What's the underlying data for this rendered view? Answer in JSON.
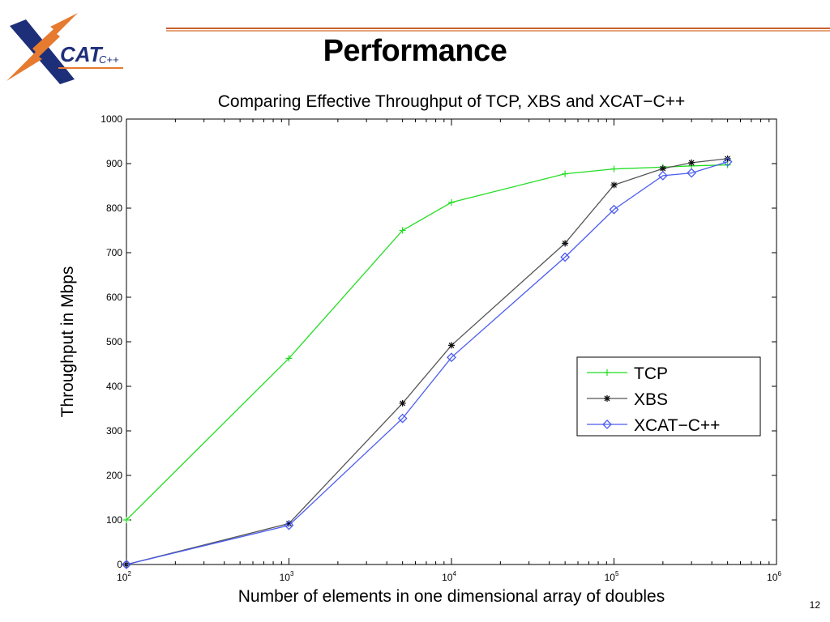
{
  "slide": {
    "title": "Performance",
    "page_number": "12",
    "logo_text": "CAT",
    "logo_suffix": "C++"
  },
  "colors": {
    "rule": "#c8602a",
    "tcp": "#22dd22",
    "xbs": "#555555",
    "xcat": "#4b5cf0",
    "logo_blue": "#1e2f7a",
    "logo_orange": "#e67a2e"
  },
  "chart_data": {
    "type": "line",
    "title": "Comparing Effective Throughput of TCP, XBS and XCAT−C++",
    "xlabel": "Number of elements in one dimensional array of doubles",
    "ylabel": "Throughput in Mbps",
    "x_scale": "log",
    "xlim": [
      100,
      1000000
    ],
    "ylim": [
      0,
      1000
    ],
    "x_ticks": [
      {
        "value": 100,
        "base": "10",
        "exp": "2"
      },
      {
        "value": 1000,
        "base": "10",
        "exp": "3"
      },
      {
        "value": 10000,
        "base": "10",
        "exp": "4"
      },
      {
        "value": 100000,
        "base": "10",
        "exp": "5"
      },
      {
        "value": 1000000,
        "base": "10",
        "exp": "6"
      }
    ],
    "y_ticks": [
      "0",
      "100",
      "200",
      "300",
      "400",
      "500",
      "600",
      "700",
      "800",
      "900",
      "1000"
    ],
    "grid": false,
    "legend_position": "lower-right",
    "series": [
      {
        "name": "TCP",
        "marker": "plus",
        "color": "#22dd22",
        "x": [
          100,
          1000,
          5000,
          10000,
          50000,
          100000,
          200000,
          300000,
          500000
        ],
        "y": [
          100,
          463,
          750,
          813,
          877,
          888,
          892,
          895,
          897
        ]
      },
      {
        "name": "XBS",
        "marker": "star",
        "color": "#555555",
        "x": [
          100,
          1000,
          5000,
          10000,
          50000,
          100000,
          200000,
          300000,
          500000
        ],
        "y": [
          0,
          92,
          362,
          492,
          721,
          852,
          889,
          902,
          911
        ]
      },
      {
        "name": "XCAT−C++",
        "marker": "diamond",
        "color": "#4b5cf0",
        "x": [
          100,
          1000,
          5000,
          10000,
          50000,
          100000,
          200000,
          300000,
          500000
        ],
        "y": [
          0,
          88,
          328,
          465,
          690,
          797,
          873,
          879,
          904
        ]
      }
    ]
  }
}
